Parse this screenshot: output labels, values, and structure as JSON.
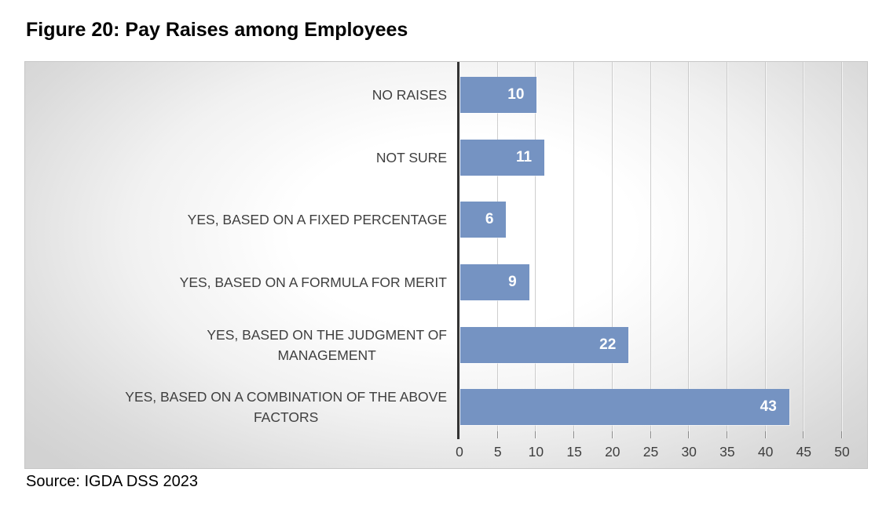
{
  "title": "Figure 20: Pay Raises among Employees",
  "source": "Source: IGDA DSS 2023",
  "chart_data": {
    "type": "bar",
    "orientation": "horizontal",
    "title": "Figure 20: Pay Raises among Employees",
    "categories": [
      "NO RAISES",
      "NOT SURE",
      "YES, BASED ON A FIXED PERCENTAGE",
      "YES, BASED ON A FORMULA FOR MERIT",
      "YES, BASED ON THE JUDGMENT OF MANAGEMENT",
      "YES, BASED ON A COMBINATION OF THE ABOVE FACTORS"
    ],
    "category_label_lines": [
      [
        "NO RAISES"
      ],
      [
        "NOT SURE"
      ],
      [
        "YES, BASED ON A FIXED PERCENTAGE"
      ],
      [
        "YES, BASED ON A FORMULA FOR MERIT"
      ],
      [
        "YES, BASED ON THE JUDGMENT OF",
        "MANAGEMENT"
      ],
      [
        "YES, BASED ON A COMBINATION OF THE ABOVE",
        "FACTORS"
      ]
    ],
    "values": [
      10,
      11,
      6,
      9,
      22,
      43
    ],
    "data_labels": [
      10,
      11,
      6,
      9,
      22,
      43
    ],
    "xlim": [
      0,
      50
    ],
    "x_ticks": [
      0,
      5,
      10,
      15,
      20,
      25,
      30,
      35,
      40,
      45,
      50
    ],
    "xlabel": "",
    "ylabel": "",
    "grid": true,
    "legend": false,
    "bar_color": "#7593C2",
    "value_label_color": "#FFFFFF",
    "axis_line_color": "#333333",
    "gridline_color": "#C5C5C5",
    "plot_bg_center": "#FFFFFF",
    "plot_bg_edge": "#D2D2D2",
    "source_note": "Source: IGDA DSS 2023"
  }
}
